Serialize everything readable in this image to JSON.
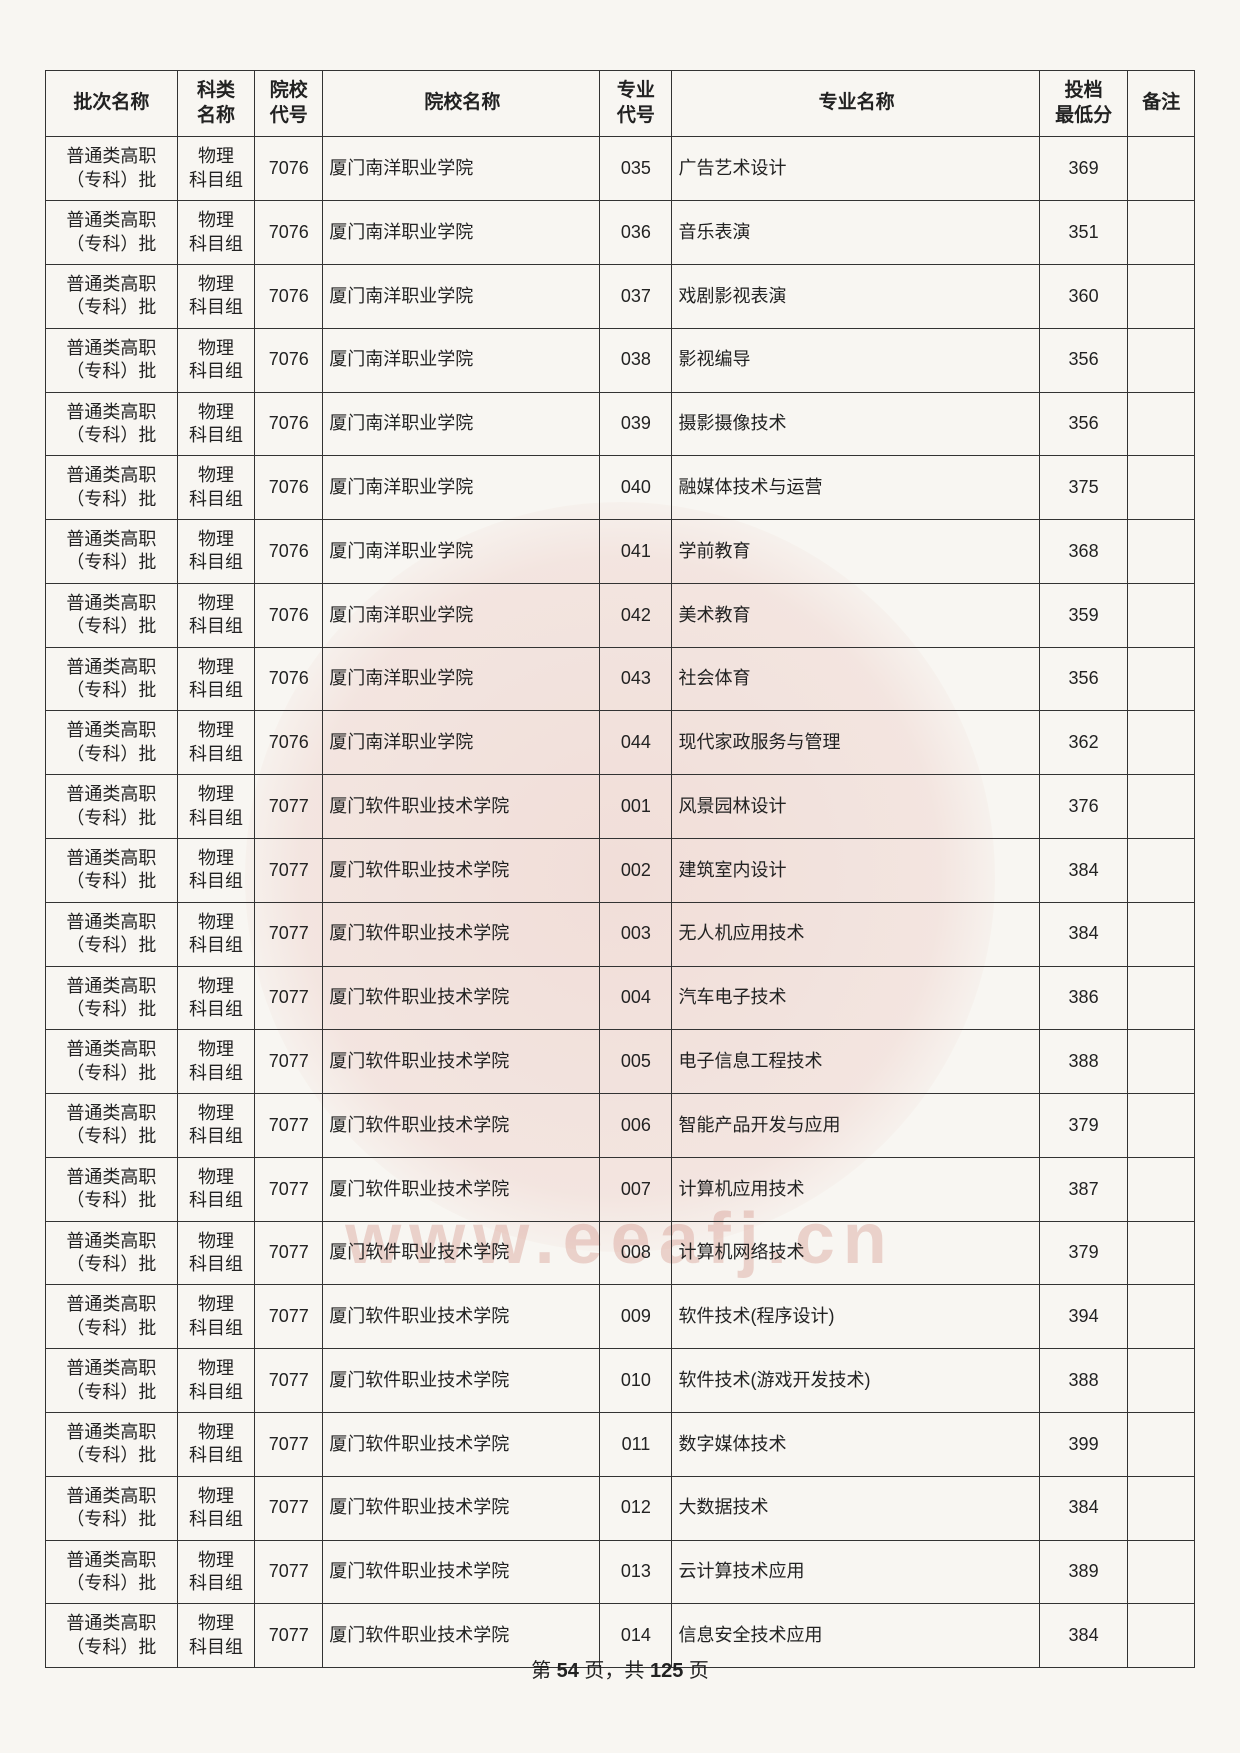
{
  "table": {
    "columns": [
      {
        "key": "batch",
        "label": "批次名称",
        "class": "col-batch"
      },
      {
        "key": "subject",
        "label": "科类\n名称",
        "class": "col-subject"
      },
      {
        "key": "schoolCode",
        "label": "院校\n代号",
        "class": "col-schoolcode"
      },
      {
        "key": "schoolName",
        "label": "院校名称",
        "class": "col-schoolname"
      },
      {
        "key": "majorCode",
        "label": "专业\n代号",
        "class": "col-majorcode"
      },
      {
        "key": "majorName",
        "label": "专业名称",
        "class": "col-majorname"
      },
      {
        "key": "score",
        "label": "投档\n最低分",
        "class": "col-score"
      },
      {
        "key": "remark",
        "label": "备注",
        "class": "col-remark"
      }
    ],
    "rows": [
      {
        "batch": "普通类高职\n（专科）批",
        "subject": "物理\n科目组",
        "schoolCode": "7076",
        "schoolName": "厦门南洋职业学院",
        "majorCode": "035",
        "majorName": "广告艺术设计",
        "score": "369",
        "remark": ""
      },
      {
        "batch": "普通类高职\n（专科）批",
        "subject": "物理\n科目组",
        "schoolCode": "7076",
        "schoolName": "厦门南洋职业学院",
        "majorCode": "036",
        "majorName": "音乐表演",
        "score": "351",
        "remark": ""
      },
      {
        "batch": "普通类高职\n（专科）批",
        "subject": "物理\n科目组",
        "schoolCode": "7076",
        "schoolName": "厦门南洋职业学院",
        "majorCode": "037",
        "majorName": "戏剧影视表演",
        "score": "360",
        "remark": ""
      },
      {
        "batch": "普通类高职\n（专科）批",
        "subject": "物理\n科目组",
        "schoolCode": "7076",
        "schoolName": "厦门南洋职业学院",
        "majorCode": "038",
        "majorName": "影视编导",
        "score": "356",
        "remark": ""
      },
      {
        "batch": "普通类高职\n（专科）批",
        "subject": "物理\n科目组",
        "schoolCode": "7076",
        "schoolName": "厦门南洋职业学院",
        "majorCode": "039",
        "majorName": "摄影摄像技术",
        "score": "356",
        "remark": ""
      },
      {
        "batch": "普通类高职\n（专科）批",
        "subject": "物理\n科目组",
        "schoolCode": "7076",
        "schoolName": "厦门南洋职业学院",
        "majorCode": "040",
        "majorName": "融媒体技术与运营",
        "score": "375",
        "remark": ""
      },
      {
        "batch": "普通类高职\n（专科）批",
        "subject": "物理\n科目组",
        "schoolCode": "7076",
        "schoolName": "厦门南洋职业学院",
        "majorCode": "041",
        "majorName": "学前教育",
        "score": "368",
        "remark": ""
      },
      {
        "batch": "普通类高职\n（专科）批",
        "subject": "物理\n科目组",
        "schoolCode": "7076",
        "schoolName": "厦门南洋职业学院",
        "majorCode": "042",
        "majorName": "美术教育",
        "score": "359",
        "remark": ""
      },
      {
        "batch": "普通类高职\n（专科）批",
        "subject": "物理\n科目组",
        "schoolCode": "7076",
        "schoolName": "厦门南洋职业学院",
        "majorCode": "043",
        "majorName": "社会体育",
        "score": "356",
        "remark": ""
      },
      {
        "batch": "普通类高职\n（专科）批",
        "subject": "物理\n科目组",
        "schoolCode": "7076",
        "schoolName": "厦门南洋职业学院",
        "majorCode": "044",
        "majorName": "现代家政服务与管理",
        "score": "362",
        "remark": ""
      },
      {
        "batch": "普通类高职\n（专科）批",
        "subject": "物理\n科目组",
        "schoolCode": "7077",
        "schoolName": "厦门软件职业技术学院",
        "majorCode": "001",
        "majorName": "风景园林设计",
        "score": "376",
        "remark": ""
      },
      {
        "batch": "普通类高职\n（专科）批",
        "subject": "物理\n科目组",
        "schoolCode": "7077",
        "schoolName": "厦门软件职业技术学院",
        "majorCode": "002",
        "majorName": "建筑室内设计",
        "score": "384",
        "remark": ""
      },
      {
        "batch": "普通类高职\n（专科）批",
        "subject": "物理\n科目组",
        "schoolCode": "7077",
        "schoolName": "厦门软件职业技术学院",
        "majorCode": "003",
        "majorName": "无人机应用技术",
        "score": "384",
        "remark": ""
      },
      {
        "batch": "普通类高职\n（专科）批",
        "subject": "物理\n科目组",
        "schoolCode": "7077",
        "schoolName": "厦门软件职业技术学院",
        "majorCode": "004",
        "majorName": "汽车电子技术",
        "score": "386",
        "remark": ""
      },
      {
        "batch": "普通类高职\n（专科）批",
        "subject": "物理\n科目组",
        "schoolCode": "7077",
        "schoolName": "厦门软件职业技术学院",
        "majorCode": "005",
        "majorName": "电子信息工程技术",
        "score": "388",
        "remark": ""
      },
      {
        "batch": "普通类高职\n（专科）批",
        "subject": "物理\n科目组",
        "schoolCode": "7077",
        "schoolName": "厦门软件职业技术学院",
        "majorCode": "006",
        "majorName": "智能产品开发与应用",
        "score": "379",
        "remark": ""
      },
      {
        "batch": "普通类高职\n（专科）批",
        "subject": "物理\n科目组",
        "schoolCode": "7077",
        "schoolName": "厦门软件职业技术学院",
        "majorCode": "007",
        "majorName": "计算机应用技术",
        "score": "387",
        "remark": ""
      },
      {
        "batch": "普通类高职\n（专科）批",
        "subject": "物理\n科目组",
        "schoolCode": "7077",
        "schoolName": "厦门软件职业技术学院",
        "majorCode": "008",
        "majorName": "计算机网络技术",
        "score": "379",
        "remark": ""
      },
      {
        "batch": "普通类高职\n（专科）批",
        "subject": "物理\n科目组",
        "schoolCode": "7077",
        "schoolName": "厦门软件职业技术学院",
        "majorCode": "009",
        "majorName": "软件技术(程序设计)",
        "score": "394",
        "remark": ""
      },
      {
        "batch": "普通类高职\n（专科）批",
        "subject": "物理\n科目组",
        "schoolCode": "7077",
        "schoolName": "厦门软件职业技术学院",
        "majorCode": "010",
        "majorName": "软件技术(游戏开发技术)",
        "score": "388",
        "remark": ""
      },
      {
        "batch": "普通类高职\n（专科）批",
        "subject": "物理\n科目组",
        "schoolCode": "7077",
        "schoolName": "厦门软件职业技术学院",
        "majorCode": "011",
        "majorName": "数字媒体技术",
        "score": "399",
        "remark": ""
      },
      {
        "batch": "普通类高职\n（专科）批",
        "subject": "物理\n科目组",
        "schoolCode": "7077",
        "schoolName": "厦门软件职业技术学院",
        "majorCode": "012",
        "majorName": "大数据技术",
        "score": "384",
        "remark": ""
      },
      {
        "batch": "普通类高职\n（专科）批",
        "subject": "物理\n科目组",
        "schoolCode": "7077",
        "schoolName": "厦门软件职业技术学院",
        "majorCode": "013",
        "majorName": "云计算技术应用",
        "score": "389",
        "remark": ""
      },
      {
        "batch": "普通类高职\n（专科）批",
        "subject": "物理\n科目组",
        "schoolCode": "7077",
        "schoolName": "厦门软件职业技术学院",
        "majorCode": "014",
        "majorName": "信息安全技术应用",
        "score": "384",
        "remark": ""
      }
    ]
  },
  "pager": {
    "prefix": "第 ",
    "current": "54",
    "mid": " 页，共 ",
    "total": "125",
    "suffix": " 页"
  },
  "watermark": {
    "url": "www.eeafj.cn"
  },
  "styling": {
    "page_bg": "#f8f6f2",
    "border_color": "#333333",
    "text_color": "#222222",
    "header_fontsize": 19,
    "cell_fontsize": 18,
    "watermark_color": "rgba(210,140,130,0.35)"
  }
}
